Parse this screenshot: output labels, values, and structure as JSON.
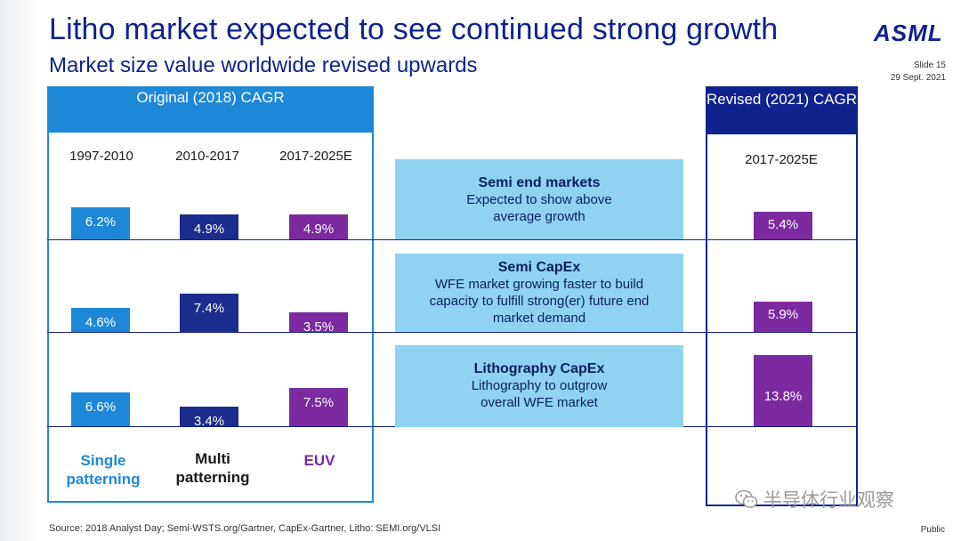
{
  "header": {
    "title": "Litho market expected to see continued strong growth",
    "subtitle": "Market size value worldwide revised upwards",
    "logo": "ASML",
    "slide_number": "Slide 15",
    "date": "29 Sept. 2021"
  },
  "left_panel": {
    "title": "Original (2018) CAGR",
    "periods": [
      "1997-2010",
      "2010-2017",
      "2017-2025E"
    ],
    "footer_labels": [
      "Single patterning",
      "Multi patterning",
      "EUV"
    ]
  },
  "right_panel": {
    "title": "Revised (2021) CAGR",
    "period": "2017-2025E"
  },
  "middle": [
    {
      "heading": "Semi end markets",
      "text": "Expected to show above average growth"
    },
    {
      "heading": "Semi CapEx",
      "text": "WFE market growing faster to build capacity to fulfill strong(er) future end market demand"
    },
    {
      "heading": "Lithography CapEx",
      "text": "Lithography to outgrow overall WFE market"
    }
  ],
  "footer": {
    "source": "Source: 2018 Analyst Day; Semi-WSTS.org/Gartner, CapEx-Gartner,  Litho: SEMI.org/VLSI",
    "classification": "Public",
    "watermark": "半导体行业观察"
  },
  "colors": {
    "single": "#1e88d8",
    "multi": "#1a2c8c",
    "euv": "#7b2aa0",
    "brand": "#0f238c",
    "info_box": "#8fd3f0"
  },
  "chart_data": {
    "type": "bar",
    "title": "Original (2018) CAGR vs Revised (2021) CAGR",
    "rows": [
      "Semi end markets",
      "Semi CapEx",
      "Lithography CapEx"
    ],
    "categories": [
      "1997-2010",
      "2010-2017",
      "2017-2025E"
    ],
    "series": [
      {
        "name": "Semi end markets",
        "values": [
          6.2,
          4.9,
          4.9
        ],
        "revised": 5.4,
        "labels": [
          "6.2%",
          "4.9%",
          "4.9%"
        ],
        "revised_label": "5.4%"
      },
      {
        "name": "Semi CapEx",
        "values": [
          4.6,
          7.4,
          3.5
        ],
        "revised": 5.9,
        "labels": [
          "4.6%",
          "7.4%",
          "3.5%"
        ],
        "revised_label": "5.9%"
      },
      {
        "name": "Lithography CapEx",
        "values": [
          6.6,
          3.4,
          7.5
        ],
        "revised": 13.8,
        "labels": [
          "6.6%",
          "3.4%",
          "7.5%"
        ],
        "revised_label": "13.8%"
      }
    ],
    "column_groups": [
      "Single patterning",
      "Multi patterning",
      "EUV"
    ],
    "unit": "%"
  }
}
